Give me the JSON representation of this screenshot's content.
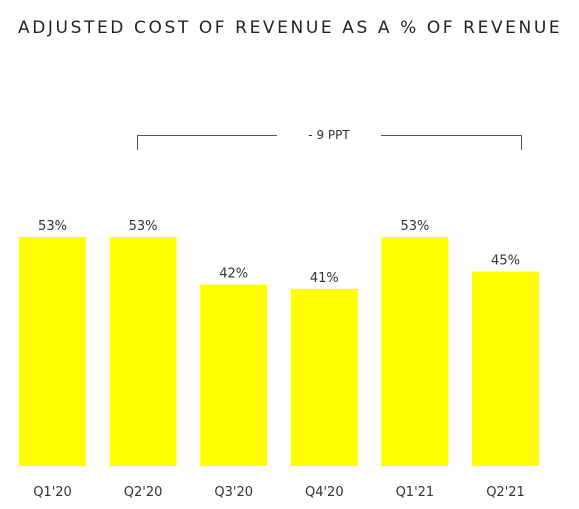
{
  "chart_data": {
    "type": "bar",
    "title": "ADJUSTED COST OF REVENUE AS A % OF REVENUE",
    "categories": [
      "Q1'20",
      "Q2'20",
      "Q3'20",
      "Q4'20",
      "Q1'21",
      "Q2'21"
    ],
    "values": [
      53,
      53,
      42,
      41,
      53,
      45
    ],
    "value_labels": [
      "53%",
      "53%",
      "42%",
      "41%",
      "53%",
      "45%"
    ],
    "unit": "%",
    "ylim": [
      0,
      53
    ],
    "grid": false,
    "legend": "none",
    "bar_color": "#FFFF00",
    "annotation": {
      "text": "- 9 PPT",
      "from_category": "Q2'20",
      "to_category": "Q2'21"
    }
  }
}
